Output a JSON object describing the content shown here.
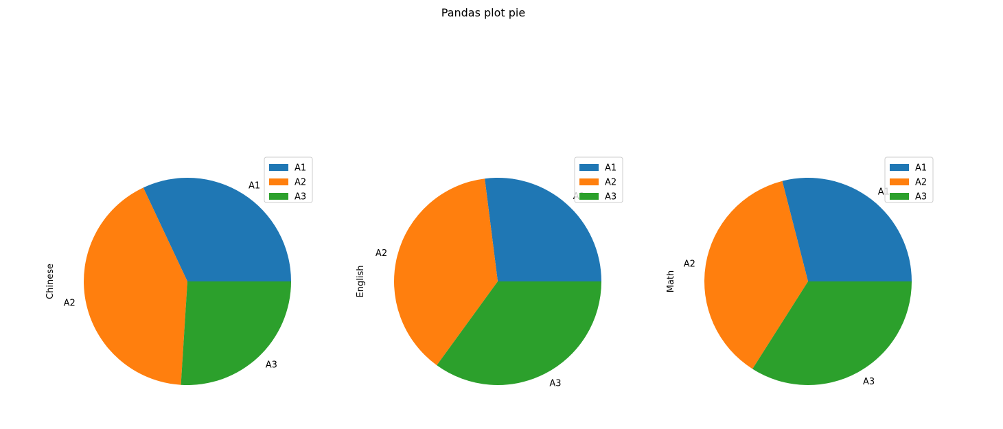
{
  "figure": {
    "title": "Pandas plot pie"
  },
  "chart_data": [
    {
      "type": "pie",
      "ylabel": "Chinese",
      "categories": [
        "A1",
        "A2",
        "A3"
      ],
      "values": [
        32,
        42,
        26
      ],
      "colors": [
        "#1f77b4",
        "#ff7f0e",
        "#2ca02c"
      ],
      "legend": {
        "entries": [
          "A1",
          "A2",
          "A3"
        ],
        "placement": "upper-right"
      }
    },
    {
      "type": "pie",
      "ylabel": "English",
      "categories": [
        "A1",
        "A2",
        "A3"
      ],
      "values": [
        27,
        38,
        35
      ],
      "colors": [
        "#1f77b4",
        "#ff7f0e",
        "#2ca02c"
      ],
      "legend": {
        "entries": [
          "A1",
          "A2",
          "A3"
        ],
        "placement": "upper-right"
      }
    },
    {
      "type": "pie",
      "ylabel": "Math",
      "categories": [
        "A1",
        "A2",
        "A3"
      ],
      "values": [
        29,
        37,
        34
      ],
      "colors": [
        "#1f77b4",
        "#ff7f0e",
        "#2ca02c"
      ],
      "legend": {
        "entries": [
          "A1",
          "A2",
          "A3"
        ],
        "placement": "upper-right"
      }
    }
  ]
}
